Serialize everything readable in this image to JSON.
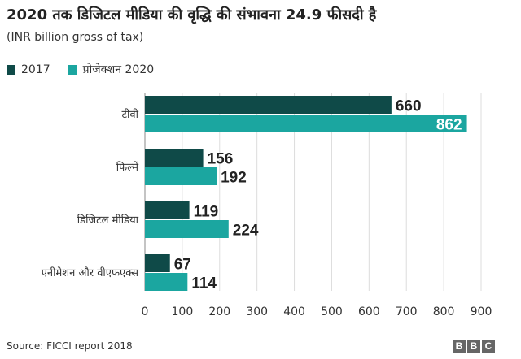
{
  "title": "2020 तक डिजिटल मीडिया की वृद्धि की संभावना 24.9 फीसदी है",
  "subtitle": "(INR billion gross of tax)",
  "source": "Source: FICCI report 2018",
  "logo": [
    "B",
    "B",
    "C"
  ],
  "colors": {
    "series_2017": "#0f4a48",
    "series_2020": "#1ba6a0"
  },
  "chart_data": {
    "type": "bar",
    "orientation": "horizontal",
    "categories": [
      "टीवी",
      "फिल्में",
      "डिजिटल मीडिया",
      "एनीमेशन और वीएफएक्स"
    ],
    "series": [
      {
        "name": "2017",
        "values": [
          660,
          156,
          119,
          67
        ],
        "color": "#0f4a48"
      },
      {
        "name": "प्रोजेक्शन 2020",
        "values": [
          862,
          192,
          224,
          114
        ],
        "color": "#1ba6a0"
      }
    ],
    "xlim": [
      0,
      900
    ],
    "xticks": [
      0,
      100,
      200,
      300,
      400,
      500,
      600,
      700,
      800,
      900
    ],
    "grid": "vertical",
    "legend": "top-left",
    "data_labels": true
  }
}
